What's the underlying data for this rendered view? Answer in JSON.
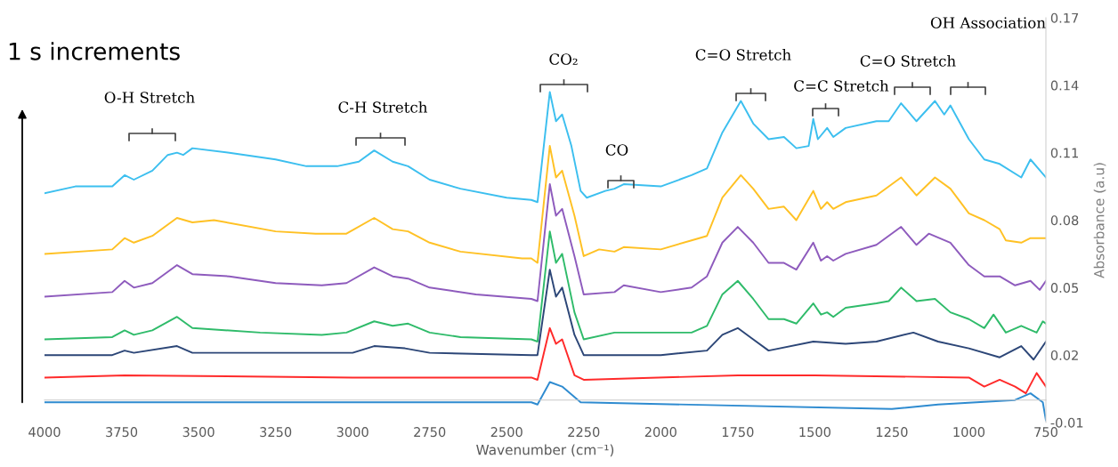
{
  "chart_data": {
    "type": "line",
    "xlabel": "Wavenumber (cm⁻¹)",
    "ylabel": "Absorbance (a.u)",
    "xlim": [
      4000,
      750
    ],
    "xticks": [
      4000,
      3750,
      3500,
      3250,
      3000,
      2750,
      2500,
      2250,
      2000,
      1750,
      1500,
      1250,
      1000,
      750
    ],
    "ylim": [
      -0.01,
      0.17
    ],
    "yticks": [
      -0.01,
      0.02,
      0.05,
      0.08,
      0.11,
      0.14,
      0.17
    ],
    "grid": false,
    "legend": false,
    "marker": "none",
    "line_style": "solid",
    "annotations": [
      "1 s increments",
      "O-H Stretch",
      "C-H Stretch",
      "CO₂",
      "CO",
      "C=O Stretch",
      "C=C Stretch",
      "C=O Stretch",
      "OH Association"
    ],
    "series": [
      {
        "color": "#3cbfef",
        "x": [
          4000,
          3900,
          3780,
          3740,
          3710,
          3650,
          3600,
          3570,
          3550,
          3520,
          3400,
          3250,
          3150,
          3050,
          2980,
          2930,
          2870,
          2820,
          2750,
          2650,
          2500,
          2420,
          2400,
          2360,
          2340,
          2320,
          2290,
          2260,
          2240,
          2180,
          2150,
          2120,
          2000,
          1900,
          1850,
          1800,
          1740,
          1700,
          1650,
          1600,
          1560,
          1520,
          1505,
          1490,
          1460,
          1440,
          1400,
          1300,
          1260,
          1220,
          1170,
          1110,
          1080,
          1060,
          1000,
          950,
          900,
          830,
          800,
          750
        ],
        "values": [
          0.092,
          0.095,
          0.095,
          0.1,
          0.098,
          0.102,
          0.109,
          0.11,
          0.109,
          0.112,
          0.11,
          0.107,
          0.104,
          0.104,
          0.106,
          0.111,
          0.106,
          0.104,
          0.098,
          0.094,
          0.09,
          0.089,
          0.088,
          0.137,
          0.124,
          0.127,
          0.113,
          0.093,
          0.09,
          0.093,
          0.094,
          0.096,
          0.095,
          0.1,
          0.103,
          0.119,
          0.133,
          0.123,
          0.116,
          0.117,
          0.112,
          0.113,
          0.125,
          0.116,
          0.121,
          0.117,
          0.121,
          0.124,
          0.124,
          0.132,
          0.124,
          0.133,
          0.127,
          0.131,
          0.116,
          0.107,
          0.105,
          0.099,
          0.107,
          0.099
        ]
      },
      {
        "color": "#ffc124",
        "x": [
          4000,
          3780,
          3740,
          3710,
          3650,
          3570,
          3520,
          3450,
          3250,
          3120,
          3020,
          2930,
          2870,
          2820,
          2750,
          2650,
          2450,
          2420,
          2400,
          2360,
          2340,
          2320,
          2280,
          2250,
          2200,
          2150,
          2120,
          2000,
          1900,
          1850,
          1800,
          1740,
          1700,
          1650,
          1600,
          1560,
          1505,
          1480,
          1460,
          1440,
          1400,
          1300,
          1220,
          1170,
          1110,
          1060,
          1000,
          950,
          900,
          880,
          830,
          800,
          750
        ],
        "values": [
          0.065,
          0.067,
          0.072,
          0.07,
          0.073,
          0.081,
          0.079,
          0.08,
          0.075,
          0.074,
          0.074,
          0.081,
          0.076,
          0.075,
          0.07,
          0.066,
          0.063,
          0.063,
          0.061,
          0.113,
          0.099,
          0.102,
          0.082,
          0.064,
          0.067,
          0.066,
          0.068,
          0.067,
          0.071,
          0.073,
          0.09,
          0.1,
          0.094,
          0.085,
          0.086,
          0.08,
          0.093,
          0.085,
          0.088,
          0.085,
          0.088,
          0.091,
          0.099,
          0.091,
          0.099,
          0.094,
          0.083,
          0.08,
          0.076,
          0.071,
          0.07,
          0.072,
          0.072
        ]
      },
      {
        "color": "#8e5bbd",
        "x": [
          4000,
          3780,
          3740,
          3710,
          3650,
          3570,
          3520,
          3400,
          3250,
          3100,
          3020,
          2930,
          2870,
          2820,
          2750,
          2600,
          2420,
          2400,
          2360,
          2340,
          2320,
          2280,
          2250,
          2150,
          2120,
          2000,
          1900,
          1850,
          1800,
          1750,
          1700,
          1650,
          1600,
          1560,
          1505,
          1480,
          1460,
          1440,
          1400,
          1300,
          1220,
          1170,
          1130,
          1060,
          1000,
          950,
          900,
          850,
          800,
          770,
          750
        ],
        "values": [
          0.046,
          0.048,
          0.053,
          0.05,
          0.052,
          0.06,
          0.056,
          0.055,
          0.052,
          0.051,
          0.052,
          0.059,
          0.055,
          0.054,
          0.05,
          0.047,
          0.045,
          0.044,
          0.096,
          0.082,
          0.085,
          0.064,
          0.047,
          0.048,
          0.051,
          0.048,
          0.05,
          0.055,
          0.07,
          0.077,
          0.07,
          0.061,
          0.061,
          0.058,
          0.07,
          0.062,
          0.064,
          0.062,
          0.065,
          0.069,
          0.077,
          0.069,
          0.074,
          0.07,
          0.06,
          0.055,
          0.055,
          0.051,
          0.053,
          0.049,
          0.053
        ]
      },
      {
        "color": "#2fbb6a",
        "x": [
          4000,
          3780,
          3740,
          3710,
          3650,
          3570,
          3520,
          3300,
          3100,
          3020,
          2930,
          2870,
          2820,
          2750,
          2650,
          2420,
          2400,
          2360,
          2340,
          2320,
          2280,
          2250,
          2150,
          2000,
          1900,
          1850,
          1800,
          1750,
          1700,
          1650,
          1600,
          1560,
          1505,
          1480,
          1460,
          1440,
          1400,
          1300,
          1260,
          1220,
          1170,
          1110,
          1060,
          1000,
          950,
          920,
          880,
          830,
          780,
          760,
          750
        ],
        "values": [
          0.027,
          0.028,
          0.031,
          0.029,
          0.031,
          0.037,
          0.032,
          0.03,
          0.029,
          0.03,
          0.035,
          0.033,
          0.034,
          0.03,
          0.028,
          0.027,
          0.026,
          0.075,
          0.061,
          0.065,
          0.039,
          0.027,
          0.03,
          0.03,
          0.03,
          0.033,
          0.047,
          0.053,
          0.045,
          0.036,
          0.036,
          0.034,
          0.043,
          0.038,
          0.039,
          0.037,
          0.041,
          0.043,
          0.044,
          0.05,
          0.044,
          0.045,
          0.039,
          0.036,
          0.032,
          0.038,
          0.03,
          0.033,
          0.03,
          0.035,
          0.034
        ]
      },
      {
        "color": "#2c4677",
        "x": [
          4000,
          3780,
          3740,
          3710,
          3570,
          3520,
          3000,
          2930,
          2830,
          2750,
          2420,
          2400,
          2360,
          2340,
          2320,
          2280,
          2250,
          2000,
          1850,
          1800,
          1750,
          1700,
          1650,
          1505,
          1400,
          1300,
          1180,
          1100,
          1000,
          900,
          830,
          790,
          750
        ],
        "values": [
          0.02,
          0.02,
          0.022,
          0.021,
          0.024,
          0.021,
          0.021,
          0.024,
          0.023,
          0.021,
          0.02,
          0.02,
          0.058,
          0.046,
          0.05,
          0.029,
          0.02,
          0.02,
          0.022,
          0.029,
          0.032,
          0.027,
          0.022,
          0.026,
          0.025,
          0.026,
          0.03,
          0.026,
          0.023,
          0.019,
          0.024,
          0.018,
          0.026
        ]
      },
      {
        "color": "#ff2a2a",
        "x": [
          4000,
          3740,
          3000,
          2420,
          2400,
          2360,
          2340,
          2320,
          2280,
          2250,
          1750,
          1500,
          1000,
          950,
          900,
          850,
          815,
          780,
          750
        ],
        "values": [
          0.01,
          0.011,
          0.01,
          0.01,
          0.009,
          0.032,
          0.025,
          0.027,
          0.011,
          0.009,
          0.011,
          0.011,
          0.01,
          0.006,
          0.009,
          0.006,
          0.003,
          0.012,
          0.006
        ]
      },
      {
        "color": "#2e8bd0",
        "x": [
          4000,
          3000,
          2420,
          2400,
          2360,
          2320,
          2260,
          1250,
          1100,
          850,
          800,
          760,
          750
        ],
        "values": [
          -0.001,
          -0.001,
          -0.001,
          -0.002,
          0.008,
          0.006,
          -0.001,
          -0.004,
          -0.002,
          0.0,
          0.003,
          -0.001,
          -0.009
        ]
      }
    ]
  }
}
